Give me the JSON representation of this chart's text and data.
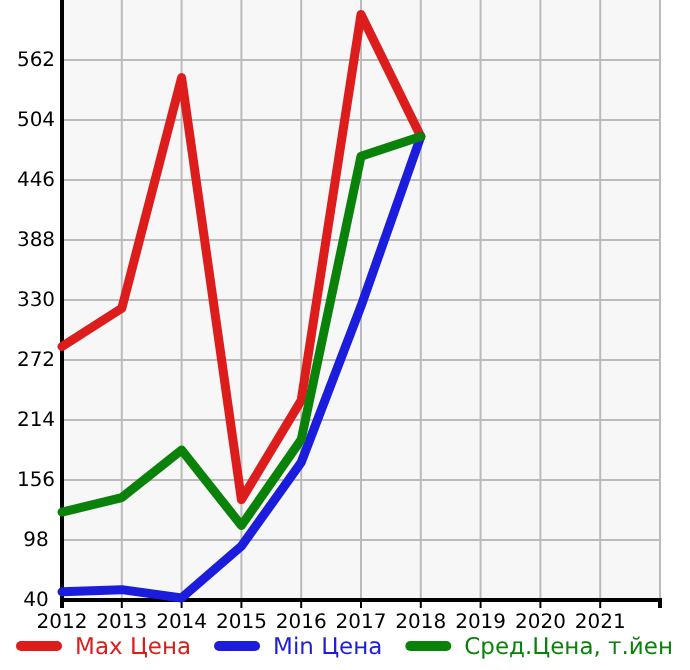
{
  "chart_data": {
    "type": "line",
    "x": [
      2012,
      2013,
      2014,
      2015,
      2016,
      2017,
      2018
    ],
    "xlim": [
      2012,
      2022
    ],
    "xticks": [
      2012,
      2013,
      2014,
      2015,
      2016,
      2017,
      2018,
      2019,
      2020,
      2021
    ],
    "ylim": [
      40,
      620
    ],
    "yticks": [
      40,
      98,
      156,
      214,
      272,
      330,
      388,
      446,
      504,
      562
    ],
    "grid": true,
    "legend": "bottom",
    "series": [
      {
        "name": "Max Цена",
        "color": "#dd1c1c",
        "values": [
          285,
          322,
          545,
          137,
          233,
          606,
          488
        ]
      },
      {
        "name": "Min Цена",
        "color": "#1c1cdd",
        "values": [
          48,
          50,
          42,
          92,
          173,
          324,
          488
        ]
      },
      {
        "name": "Сред.Цена, т.йен",
        "color": "#0a820a",
        "values": [
          125,
          139,
          185,
          112,
          195,
          469,
          488
        ]
      }
    ]
  }
}
